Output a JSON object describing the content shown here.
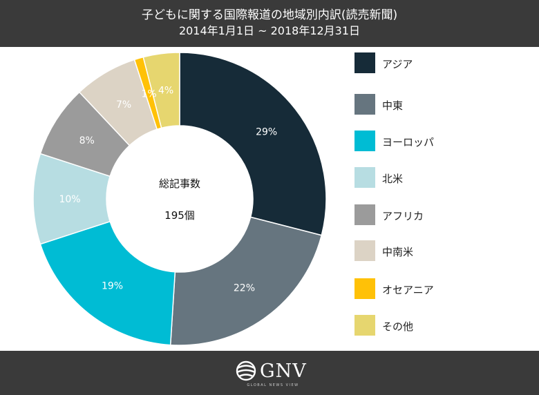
{
  "header": {
    "title": "子どもに関する国際報道の地域別内訳(読売新聞)",
    "subtitle": "2014年1月1日 ~ 2018年12月31日"
  },
  "center": {
    "label": "総記事数",
    "value": "195個"
  },
  "chart_data": {
    "type": "pie",
    "variant": "donut",
    "categories": [
      "アジア",
      "中東",
      "ヨーロッパ",
      "北米",
      "アフリカ",
      "中南米",
      "オセアニア",
      "その他"
    ],
    "values": [
      29,
      22,
      19,
      10,
      8,
      7,
      1,
      4
    ],
    "value_labels": [
      "29%",
      "22%",
      "19%",
      "10%",
      "8%",
      "7%",
      "1%",
      "4%"
    ],
    "colors": [
      "#162b38",
      "#66757f",
      "#00bcd4",
      "#b7dde2",
      "#9b9b9b",
      "#dcd3c5",
      "#ffc107",
      "#e6d66f"
    ],
    "label_colors": [
      "#ffffff",
      "#ffffff",
      "#ffffff",
      "#ffffff",
      "#ffffff",
      "#ffffff",
      "#ffffff",
      "#ffffff"
    ],
    "legend_position": "right"
  },
  "footer": {
    "logo_text": "GNV",
    "logo_tagline": "GLOBAL NEWS VIEW",
    "logo_icon": "globe-icon"
  }
}
